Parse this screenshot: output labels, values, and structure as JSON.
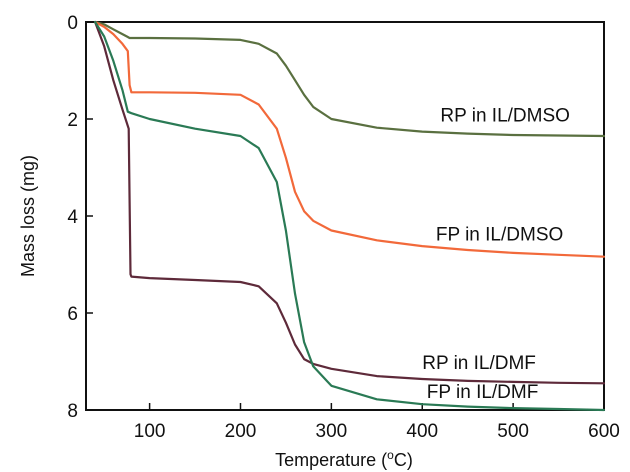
{
  "chart_data": {
    "type": "line",
    "title": "",
    "xlabel": "Temperature (°C)",
    "xlabel_main": "Temperature (",
    "xlabel_degree": "o",
    "xlabel_unit": "C)",
    "ylabel": "Mass loss (mg)",
    "xlim": [
      30,
      600
    ],
    "ylim": [
      0,
      8
    ],
    "y_inverted": true,
    "x_ticks": [
      100,
      200,
      300,
      400,
      500,
      600
    ],
    "x_tick_labels": [
      "100",
      "200",
      "300",
      "400",
      "500",
      "600"
    ],
    "y_ticks": [
      0,
      2,
      4,
      6,
      8
    ],
    "y_tick_labels": [
      "0",
      "2",
      "4",
      "6",
      "8"
    ],
    "grid": false,
    "legend": "inline labels beside curves",
    "series": [
      {
        "name": "RP in IL/DMSO",
        "color": "#5a7040",
        "x": [
          40,
          50,
          60,
          70,
          75,
          78,
          80,
          100,
          150,
          200,
          220,
          240,
          250,
          260,
          270,
          280,
          300,
          350,
          400,
          450,
          500,
          550,
          600
        ],
        "y": [
          0,
          0.05,
          0.15,
          0.25,
          0.3,
          0.33,
          0.33,
          0.33,
          0.34,
          0.37,
          0.45,
          0.65,
          0.9,
          1.2,
          1.5,
          1.75,
          2.0,
          2.18,
          2.26,
          2.3,
          2.33,
          2.34,
          2.35
        ]
      },
      {
        "name": "FP in IL/DMSO",
        "color": "#f2693a",
        "x": [
          40,
          50,
          60,
          70,
          76,
          78,
          80,
          100,
          150,
          200,
          220,
          240,
          250,
          260,
          270,
          280,
          300,
          350,
          400,
          450,
          500,
          550,
          600
        ],
        "y": [
          0,
          0.1,
          0.25,
          0.45,
          0.6,
          1.3,
          1.45,
          1.45,
          1.46,
          1.5,
          1.7,
          2.2,
          2.8,
          3.5,
          3.9,
          4.1,
          4.3,
          4.5,
          4.62,
          4.7,
          4.76,
          4.8,
          4.84
        ]
      },
      {
        "name": "RP in IL/DMF",
        "color": "#5e2a3a",
        "x": [
          40,
          50,
          60,
          70,
          77,
          79,
          80,
          100,
          150,
          200,
          220,
          240,
          250,
          260,
          270,
          280,
          300,
          350,
          400,
          450,
          500,
          550,
          600
        ],
        "y": [
          0,
          0.5,
          1.2,
          1.8,
          2.2,
          5.2,
          5.25,
          5.28,
          5.32,
          5.36,
          5.45,
          5.8,
          6.2,
          6.65,
          6.95,
          7.05,
          7.15,
          7.3,
          7.36,
          7.4,
          7.42,
          7.44,
          7.45
        ]
      },
      {
        "name": "FP in IL/DMF",
        "color": "#2a7a55",
        "x": [
          40,
          50,
          60,
          70,
          76,
          80,
          100,
          150,
          200,
          220,
          240,
          250,
          260,
          270,
          280,
          300,
          350,
          400,
          450,
          500,
          550,
          600
        ],
        "y": [
          0,
          0.3,
          0.8,
          1.4,
          1.85,
          1.88,
          2.0,
          2.2,
          2.35,
          2.6,
          3.3,
          4.3,
          5.6,
          6.6,
          7.1,
          7.5,
          7.78,
          7.88,
          7.93,
          7.96,
          7.98,
          8.0
        ]
      }
    ],
    "annotations": [
      {
        "text": "RP in IL/DMSO",
        "x": 420,
        "y": 2.05
      },
      {
        "text": "FP in IL/DMSO",
        "x": 415,
        "y": 4.5
      },
      {
        "text": "RP in IL/DMF",
        "x": 400,
        "y": 7.15
      },
      {
        "text": "FP in IL/DMF",
        "x": 405,
        "y": 7.75
      }
    ]
  }
}
